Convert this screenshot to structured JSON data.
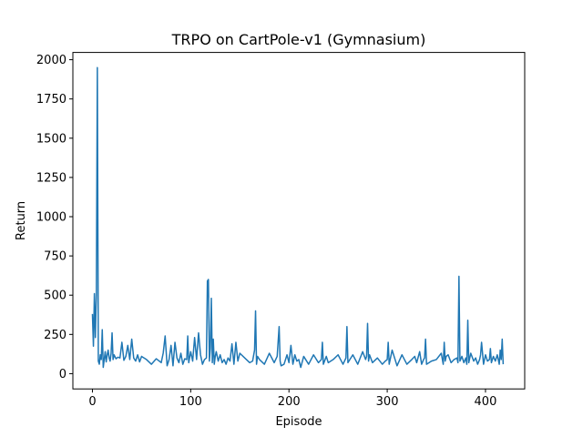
{
  "chart_data": {
    "type": "line",
    "title": "TRPO on CartPole-v1 (Gymnasium)",
    "xlabel": "Episode",
    "ylabel": "Return",
    "xlim": [
      -19.9,
      439.9
    ],
    "ylim": [
      -97.3,
      2046.3
    ],
    "xticks": [
      0,
      100,
      200,
      300,
      400
    ],
    "yticks": [
      0,
      250,
      500,
      750,
      1000,
      1250,
      1500,
      1750,
      2000
    ],
    "grid": false,
    "legend": "none",
    "series": [
      {
        "color": "#1f77b4",
        "x": [
          0,
          1,
          2,
          3,
          4,
          5,
          6,
          7,
          8,
          9,
          10,
          11,
          12,
          13,
          14,
          15,
          16,
          17,
          18,
          19,
          20,
          21,
          22,
          24,
          26,
          28,
          30,
          32,
          34,
          36,
          38,
          40,
          42,
          44,
          46,
          48,
          50,
          55,
          60,
          65,
          70,
          72,
          74,
          76,
          78,
          80,
          82,
          84,
          86,
          88,
          90,
          92,
          94,
          96,
          97,
          98,
          100,
          102,
          104,
          106,
          108,
          110,
          112,
          114,
          116,
          117,
          118,
          119,
          120,
          121,
          122,
          123,
          124,
          125,
          126,
          128,
          130,
          132,
          134,
          136,
          138,
          140,
          142,
          144,
          146,
          148,
          150,
          155,
          160,
          163,
          165,
          166,
          167,
          168,
          170,
          175,
          180,
          185,
          188,
          190,
          191,
          192,
          195,
          198,
          200,
          202,
          204,
          206,
          208,
          210,
          212,
          215,
          220,
          225,
          230,
          233,
          234,
          235,
          238,
          240,
          245,
          250,
          255,
          258,
          259,
          260,
          262,
          265,
          270,
          275,
          278,
          279,
          280,
          281,
          282,
          285,
          290,
          295,
          298,
          300,
          301,
          302,
          305,
          310,
          315,
          320,
          325,
          328,
          330,
          333,
          335,
          337,
          338,
          339,
          340,
          345,
          350,
          355,
          357,
          358,
          359,
          360,
          362,
          365,
          368,
          371,
          372,
          373,
          374,
          376,
          378,
          380,
          381,
          382,
          383,
          385,
          388,
          390,
          392,
          394,
          395,
          396,
          398,
          400,
          402,
          404,
          405,
          406,
          408,
          410,
          412,
          414,
          415,
          416,
          417,
          418
        ],
        "values": [
          380,
          175,
          510,
          230,
          510,
          1950,
          80,
          60,
          120,
          90,
          280,
          40,
          90,
          140,
          75,
          120,
          150,
          100,
          80,
          130,
          260,
          90,
          120,
          95,
          105,
          100,
          200,
          85,
          110,
          180,
          90,
          220,
          100,
          80,
          120,
          75,
          110,
          90,
          60,
          95,
          70,
          130,
          240,
          50,
          90,
          180,
          50,
          200,
          100,
          70,
          130,
          60,
          95,
          90,
          240,
          70,
          140,
          80,
          230,
          90,
          260,
          120,
          60,
          90,
          100,
          590,
          600,
          80,
          160,
          480,
          70,
          220,
          60,
          110,
          140,
          80,
          120,
          70,
          90,
          60,
          100,
          80,
          190,
          60,
          200,
          80,
          130,
          100,
          70,
          80,
          150,
          400,
          60,
          110,
          90,
          60,
          130,
          70,
          110,
          300,
          80,
          50,
          60,
          120,
          70,
          180,
          60,
          120,
          80,
          90,
          40,
          110,
          60,
          120,
          70,
          90,
          200,
          60,
          110,
          70,
          90,
          120,
          60,
          100,
          300,
          70,
          90,
          120,
          60,
          140,
          90,
          110,
          320,
          80,
          120,
          70,
          100,
          60,
          80,
          90,
          200,
          60,
          150,
          50,
          120,
          60,
          90,
          110,
          70,
          140,
          60,
          90,
          100,
          220,
          60,
          80,
          90,
          130,
          60,
          200,
          80,
          110,
          120,
          70,
          90,
          100,
          70,
          620,
          80,
          110,
          70,
          100,
          60,
          340,
          70,
          130,
          80,
          100,
          60,
          90,
          120,
          200,
          60,
          120,
          80,
          90,
          160,
          70,
          110,
          80,
          120,
          60,
          150,
          90,
          220,
          60
        ]
      }
    ]
  }
}
